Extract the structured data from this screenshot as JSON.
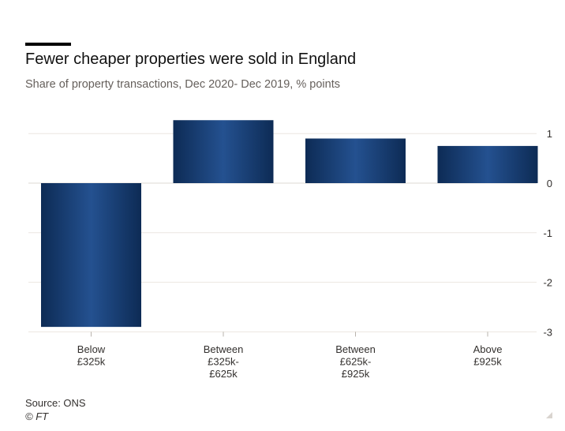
{
  "header": {
    "title": "Fewer cheaper properties were sold in England",
    "subtitle": "Share of property transactions, Dec 2020- Dec 2019, % points"
  },
  "footer": {
    "source": "Source: ONS",
    "credit": "© FT"
  },
  "colors": {
    "bar_edge": "#0d2b55",
    "bar_center": "#245190",
    "grid": "#ebe6e1",
    "axis_text": "#33302e"
  },
  "chart_data": {
    "type": "bar",
    "categories": [
      [
        "Below",
        "£325k"
      ],
      [
        "Between",
        "£325k-",
        "£625k"
      ],
      [
        "Between",
        "£625k-",
        "£925k"
      ],
      [
        "Above",
        "£925k"
      ]
    ],
    "values": [
      -2.9,
      1.27,
      0.9,
      0.75
    ],
    "ylim": [
      -3,
      1.4
    ],
    "yticks": [
      1,
      0,
      -1,
      -2,
      -3
    ],
    "grid": true,
    "y_axis_side": "right"
  }
}
